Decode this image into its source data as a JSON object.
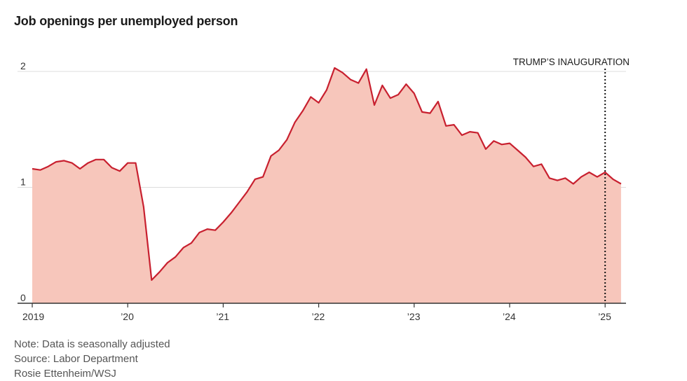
{
  "title": "Job openings per unemployed person",
  "notes": [
    "Note: Data is seasonally adjusted",
    "Source: Labor Department",
    "Rosie Ettenheim/WSJ"
  ],
  "colors": {
    "line": "#c8202f",
    "area": "#f7c6bb",
    "grid": "#dddddd",
    "axis": "#333333"
  },
  "chart_data": {
    "type": "area",
    "title": "Job openings per unemployed person",
    "xlabel": "",
    "ylabel": "",
    "ylim": [
      0,
      2
    ],
    "yticks": [
      0,
      1,
      2
    ],
    "ytick_labels": [
      "0",
      "1",
      "2"
    ],
    "xlim": [
      "2019-01",
      "2025-03"
    ],
    "xticks": [
      "2019-01",
      "2020-01",
      "2021-01",
      "2022-01",
      "2023-01",
      "2024-01",
      "2025-01"
    ],
    "xtick_labels": [
      "2019",
      "’20",
      "’21",
      "’22",
      "’23",
      "’24",
      "’25"
    ],
    "grid": true,
    "annotations": [
      {
        "x": "2025-01",
        "label": "TRUMP’S INAUGURATION",
        "style": "dotted vertical line"
      }
    ],
    "series": [
      {
        "x": [
          "2019-01",
          "2019-02",
          "2019-03",
          "2019-04",
          "2019-05",
          "2019-06",
          "2019-07",
          "2019-08",
          "2019-09",
          "2019-10",
          "2019-11",
          "2019-12",
          "2020-01",
          "2020-02",
          "2020-03",
          "2020-04",
          "2020-05",
          "2020-06",
          "2020-07",
          "2020-08",
          "2020-09",
          "2020-10",
          "2020-11",
          "2020-12",
          "2021-01",
          "2021-02",
          "2021-03",
          "2021-04",
          "2021-05",
          "2021-06",
          "2021-07",
          "2021-08",
          "2021-09",
          "2021-10",
          "2021-11",
          "2021-12",
          "2022-01",
          "2022-02",
          "2022-03",
          "2022-04",
          "2022-05",
          "2022-06",
          "2022-07",
          "2022-08",
          "2022-09",
          "2022-10",
          "2022-11",
          "2022-12",
          "2023-01",
          "2023-02",
          "2023-03",
          "2023-04",
          "2023-05",
          "2023-06",
          "2023-07",
          "2023-08",
          "2023-09",
          "2023-10",
          "2023-11",
          "2023-12",
          "2024-01",
          "2024-02",
          "2024-03",
          "2024-04",
          "2024-05",
          "2024-06",
          "2024-07",
          "2024-08",
          "2024-09",
          "2024-10",
          "2024-11",
          "2024-12",
          "2025-01",
          "2025-02",
          "2025-03"
        ],
        "values": [
          1.16,
          1.15,
          1.18,
          1.22,
          1.23,
          1.21,
          1.16,
          1.21,
          1.24,
          1.24,
          1.17,
          1.14,
          1.21,
          1.21,
          0.83,
          0.2,
          0.27,
          0.35,
          0.4,
          0.48,
          0.52,
          0.61,
          0.64,
          0.63,
          0.7,
          0.78,
          0.87,
          0.96,
          1.07,
          1.09,
          1.27,
          1.32,
          1.41,
          1.56,
          1.66,
          1.78,
          1.73,
          1.84,
          2.03,
          1.99,
          1.93,
          1.9,
          2.02,
          1.71,
          1.88,
          1.77,
          1.8,
          1.89,
          1.81,
          1.65,
          1.64,
          1.74,
          1.53,
          1.54,
          1.45,
          1.48,
          1.47,
          1.33,
          1.4,
          1.37,
          1.38,
          1.32,
          1.26,
          1.18,
          1.2,
          1.08,
          1.06,
          1.08,
          1.03,
          1.09,
          1.13,
          1.09,
          1.13,
          1.07,
          1.03
        ]
      }
    ]
  }
}
